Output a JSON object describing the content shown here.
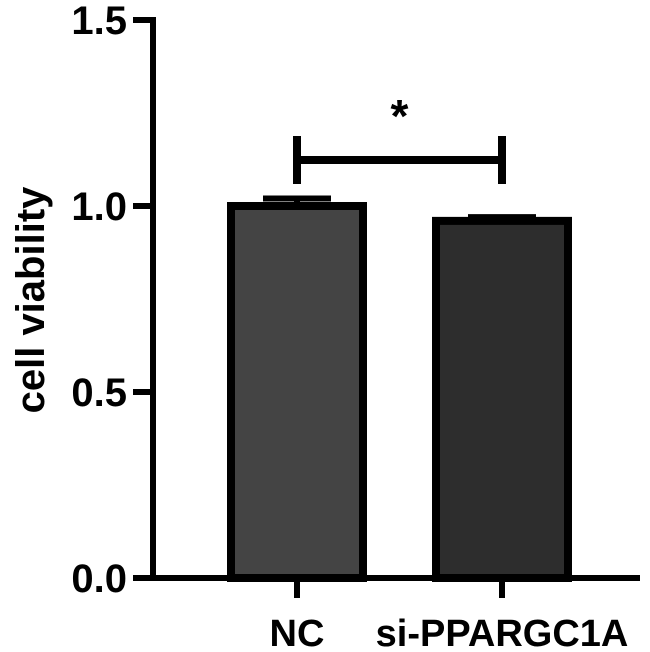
{
  "chart_data": {
    "type": "bar",
    "title": "",
    "xlabel": "",
    "ylabel": "cell viability",
    "categories": [
      "NC",
      "si-PPARGC1A"
    ],
    "values": [
      1.0,
      0.96
    ],
    "errors": [
      0.02,
      0.01
    ],
    "bar_colors": [
      "#444444",
      "#2d2d2d"
    ],
    "ylim": [
      0,
      1.5
    ],
    "yticks": [
      "0.0",
      "0.5",
      "1.0",
      "1.5"
    ],
    "grid": false,
    "legend": "none",
    "significance": {
      "between": [
        0,
        1
      ],
      "label": "*"
    }
  }
}
